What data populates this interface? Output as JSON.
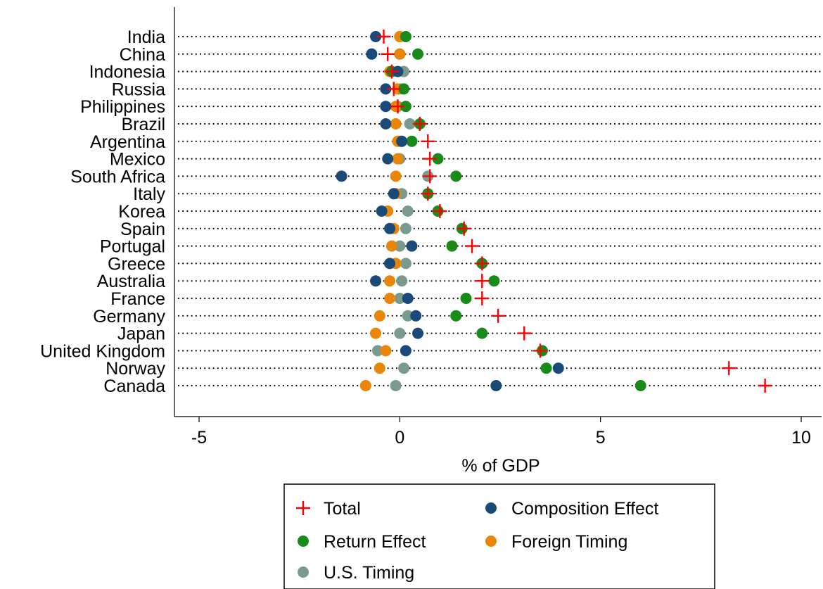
{
  "chart_data": {
    "type": "scatter",
    "title": "",
    "xlabel": "% of GDP",
    "ylabel": "",
    "xlim": [
      -5,
      10
    ],
    "xticks": [
      -5,
      0,
      5,
      10
    ],
    "grid": "dotted horizontal lines per country",
    "legend_placement": "bottom",
    "categories": [
      "India",
      "China",
      "Indonesia",
      "Russia",
      "Philippines",
      "Brazil",
      "Argentina",
      "Mexico",
      "South Africa",
      "Italy",
      "Korea",
      "Spain",
      "Portugal",
      "Greece",
      "Australia",
      "France",
      "Germany",
      "Japan",
      "United Kingdom",
      "Norway",
      "Canada"
    ],
    "series": [
      {
        "name": "Total",
        "marker": "plus",
        "color": "#ff0000",
        "values": [
          -0.4,
          -0.3,
          -0.2,
          -0.15,
          -0.05,
          0.5,
          0.7,
          0.75,
          0.75,
          0.7,
          1.0,
          1.6,
          1.8,
          2.05,
          2.05,
          2.05,
          2.45,
          3.1,
          3.5,
          8.2,
          9.1
        ]
      },
      {
        "name": "Return Effect",
        "marker": "circle",
        "color": "#1a8a1a",
        "values": [
          0.15,
          0.45,
          -0.2,
          0.1,
          0.15,
          0.5,
          0.3,
          0.95,
          1.4,
          0.7,
          0.95,
          1.55,
          1.3,
          2.05,
          2.35,
          1.65,
          1.4,
          2.05,
          3.55,
          3.65,
          6.0
        ]
      },
      {
        "name": "U.S. Timing",
        "marker": "circle",
        "color": "#7a9a90",
        "values": [
          0.0,
          0.0,
          0.1,
          0.0,
          -0.05,
          0.25,
          0.0,
          0.0,
          0.7,
          0.05,
          0.2,
          0.15,
          0.0,
          0.15,
          0.05,
          0.0,
          0.2,
          0.0,
          -0.55,
          0.1,
          -0.1
        ]
      },
      {
        "name": "Composition Effect",
        "marker": "circle",
        "color": "#1a4a78",
        "values": [
          -0.6,
          -0.7,
          -0.05,
          -0.35,
          -0.35,
          -0.35,
          0.05,
          -0.3,
          -1.45,
          -0.15,
          -0.45,
          -0.25,
          0.3,
          -0.25,
          -0.6,
          0.2,
          0.4,
          0.45,
          0.15,
          3.95,
          2.4
        ]
      },
      {
        "name": "Foreign Timing",
        "marker": "circle",
        "color": "#e8860a",
        "values": [
          0.0,
          0.0,
          -0.25,
          -0.05,
          -0.1,
          -0.1,
          -0.05,
          -0.05,
          -0.1,
          -0.1,
          -0.3,
          -0.15,
          -0.2,
          -0.1,
          -0.25,
          -0.25,
          -0.5,
          -0.6,
          -0.35,
          -0.5,
          -0.85
        ]
      }
    ]
  }
}
